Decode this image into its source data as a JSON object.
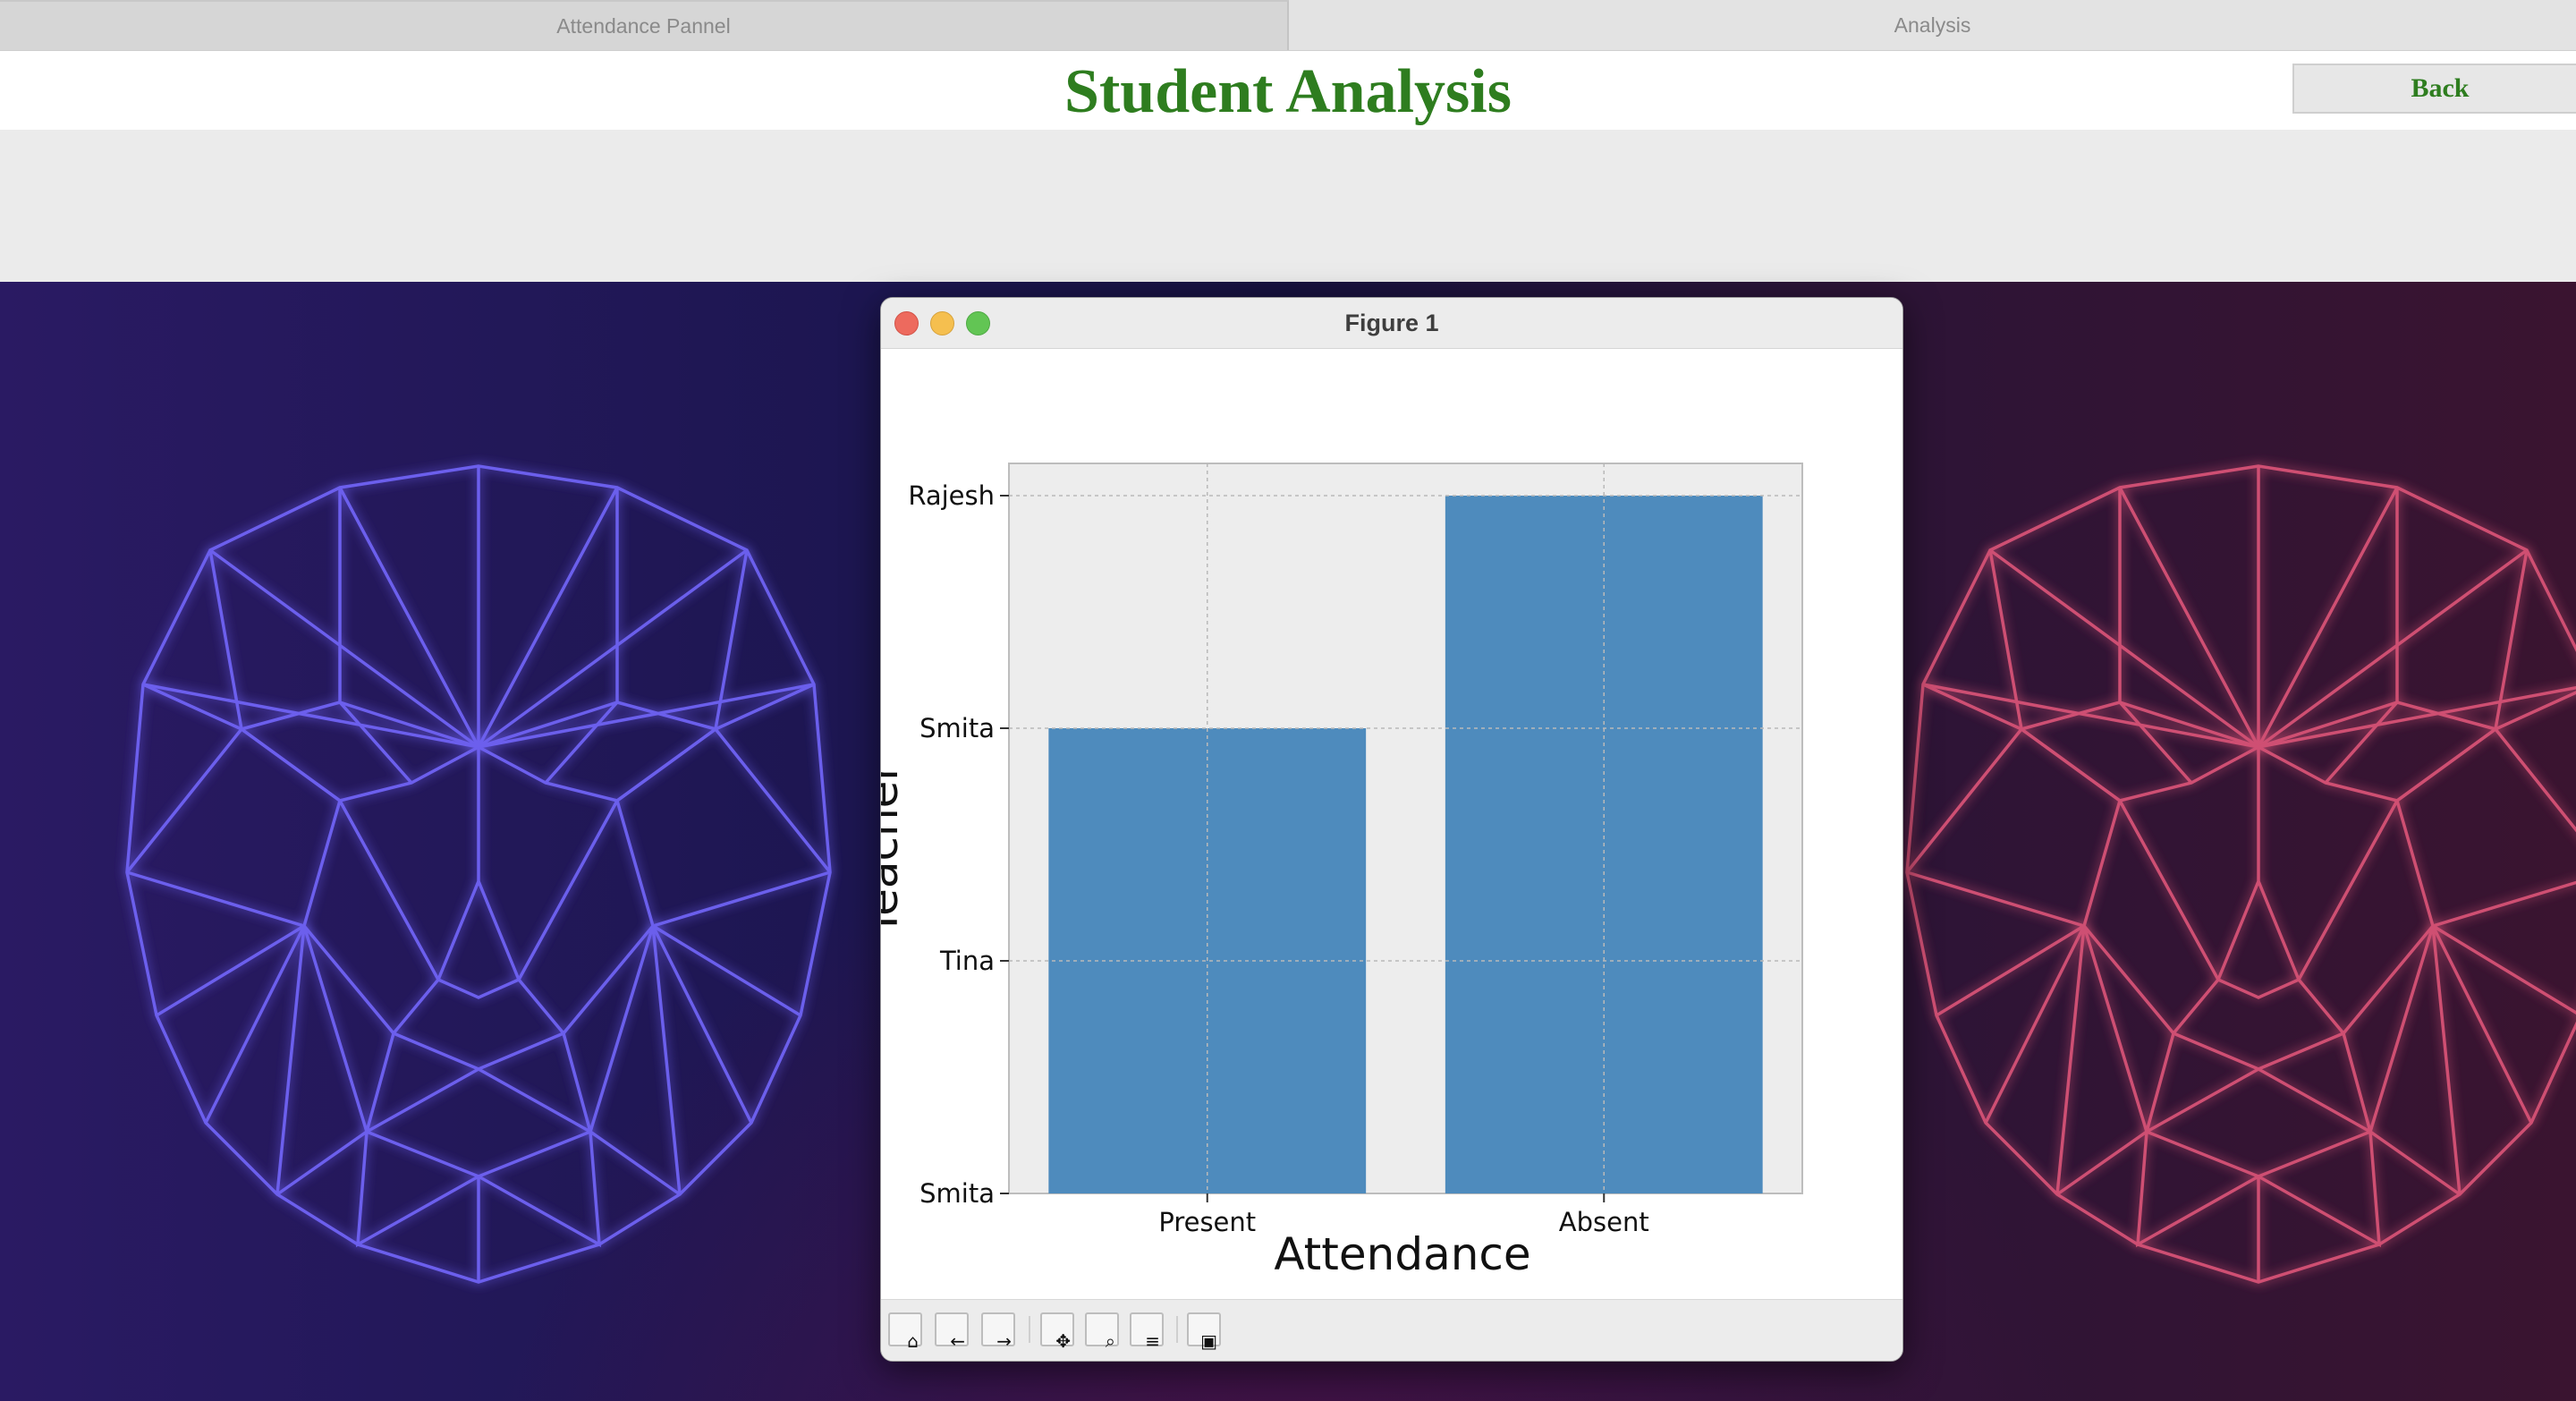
{
  "tabs": [
    {
      "label": "Attendance Pannel",
      "active": true
    },
    {
      "label": "Analysis",
      "active": false
    }
  ],
  "header": {
    "title": "Student Analysis",
    "back_label": "Back",
    "accent_color": "#2e7d1f"
  },
  "figure_window": {
    "title": "Figure 1",
    "toolbar_icons": [
      "home-icon",
      "back-arrow-icon",
      "forward-arrow-icon",
      "pan-icon",
      "zoom-icon",
      "subplots-icon",
      "save-icon"
    ]
  },
  "chart_data": {
    "type": "bar",
    "categories": [
      "Present",
      "Absent"
    ],
    "values": [
      "Smita",
      "Rajesh"
    ],
    "y_tick_labels": [
      "Smita",
      "Tina",
      "Smita",
      "Rajesh"
    ],
    "xlabel": "Attendance",
    "ylabel": "Teacher",
    "grid": true,
    "bar_color": "#4e8bbd",
    "plot_bg": "#ededed"
  }
}
